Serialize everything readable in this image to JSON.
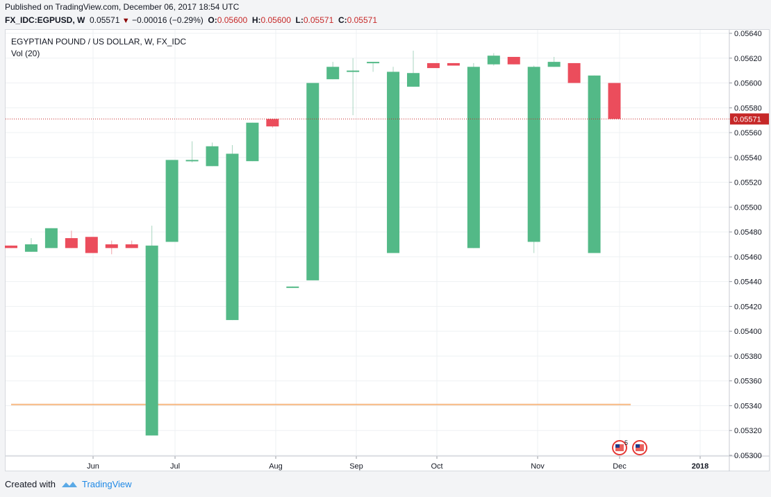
{
  "header": {
    "published": "Published on TradingView.com, December 06, 2017 18:54 UTC",
    "symbol": "FX_IDC:EGPUSD, W",
    "last": "0.05571",
    "change": "−0.00016 (−0.29%)",
    "o_label": "O:",
    "o_val": "0.05600",
    "h_label": "H:",
    "h_val": "0.05600",
    "l_label": "L:",
    "l_val": "0.05571",
    "c_label": "C:",
    "c_val": "0.05571"
  },
  "legend": {
    "title": "EGYPTIAN POUND / US DOLLAR, W, FX_IDC",
    "volume": "Vol (20)"
  },
  "footer": {
    "created": "Created with",
    "brand": "TradingView"
  },
  "colors": {
    "up": "#53b987",
    "down": "#eb4d5c",
    "price_line": "#c62828",
    "vol_line": "#f7a35c"
  },
  "chart_data": {
    "type": "candlestick",
    "ylim": [
      0.053,
      0.0564
    ],
    "yticks": [
      "0.05640",
      "0.05620",
      "0.05600",
      "0.05580",
      "0.05560",
      "0.05540",
      "0.05520",
      "0.05500",
      "0.05480",
      "0.05460",
      "0.05440",
      "0.05420",
      "0.05400",
      "0.05380",
      "0.05360",
      "0.05340",
      "0.05320",
      "0.05300"
    ],
    "xticks": [
      "Jun",
      "Jul",
      "Aug",
      "Sep",
      "Oct",
      "Nov",
      "Dec",
      "2018"
    ],
    "last_price_label": "0.05571",
    "candles": [
      {
        "o": 0.05469,
        "h": 0.05469,
        "l": 0.05467,
        "c": 0.05467
      },
      {
        "o": 0.05464,
        "h": 0.05475,
        "l": 0.05464,
        "c": 0.0547
      },
      {
        "o": 0.05467,
        "h": 0.05483,
        "l": 0.05467,
        "c": 0.05483
      },
      {
        "o": 0.05475,
        "h": 0.05481,
        "l": 0.05467,
        "c": 0.05467
      },
      {
        "o": 0.05476,
        "h": 0.05476,
        "l": 0.05463,
        "c": 0.05463
      },
      {
        "o": 0.0547,
        "h": 0.05473,
        "l": 0.05462,
        "c": 0.05467
      },
      {
        "o": 0.0547,
        "h": 0.05473,
        "l": 0.05467,
        "c": 0.05467
      },
      {
        "o": 0.05316,
        "h": 0.05485,
        "l": 0.05316,
        "c": 0.05469
      },
      {
        "o": 0.05472,
        "h": 0.05538,
        "l": 0.05472,
        "c": 0.05538
      },
      {
        "o": 0.05537,
        "h": 0.05553,
        "l": 0.05536,
        "c": 0.05538
      },
      {
        "o": 0.05533,
        "h": 0.05552,
        "l": 0.05533,
        "c": 0.05549
      },
      {
        "o": 0.05409,
        "h": 0.0555,
        "l": 0.05409,
        "c": 0.05543
      },
      {
        "o": 0.05537,
        "h": 0.05568,
        "l": 0.05537,
        "c": 0.05568
      },
      {
        "o": 0.05571,
        "h": 0.05571,
        "l": 0.05564,
        "c": 0.05565
      },
      {
        "o": 0.05435,
        "h": 0.05436,
        "l": 0.05435,
        "c": 0.05436
      },
      {
        "o": 0.05441,
        "h": 0.056,
        "l": 0.05441,
        "c": 0.056
      },
      {
        "o": 0.05603,
        "h": 0.05617,
        "l": 0.05603,
        "c": 0.05613
      },
      {
        "o": 0.05609,
        "h": 0.0562,
        "l": 0.05574,
        "c": 0.0561
      },
      {
        "o": 0.05616,
        "h": 0.05617,
        "l": 0.05609,
        "c": 0.05617
      },
      {
        "o": 0.05463,
        "h": 0.05613,
        "l": 0.05463,
        "c": 0.05609
      },
      {
        "o": 0.05597,
        "h": 0.05626,
        "l": 0.05597,
        "c": 0.05608
      },
      {
        "o": 0.05616,
        "h": 0.05616,
        "l": 0.05612,
        "c": 0.05612
      },
      {
        "o": 0.05616,
        "h": 0.05616,
        "l": 0.05614,
        "c": 0.05614
      },
      {
        "o": 0.05467,
        "h": 0.05616,
        "l": 0.05467,
        "c": 0.05613
      },
      {
        "o": 0.05615,
        "h": 0.05624,
        "l": 0.05614,
        "c": 0.05622
      },
      {
        "o": 0.05621,
        "h": 0.05621,
        "l": 0.05615,
        "c": 0.05615
      },
      {
        "o": 0.05472,
        "h": 0.05614,
        "l": 0.05463,
        "c": 0.05613
      },
      {
        "o": 0.05613,
        "h": 0.05621,
        "l": 0.05613,
        "c": 0.05617
      },
      {
        "o": 0.05616,
        "h": 0.05616,
        "l": 0.056,
        "c": 0.056
      },
      {
        "o": 0.05463,
        "h": 0.05606,
        "l": 0.05463,
        "c": 0.05606
      },
      {
        "o": 0.056,
        "h": 0.056,
        "l": 0.05571,
        "c": 0.05571
      }
    ]
  }
}
